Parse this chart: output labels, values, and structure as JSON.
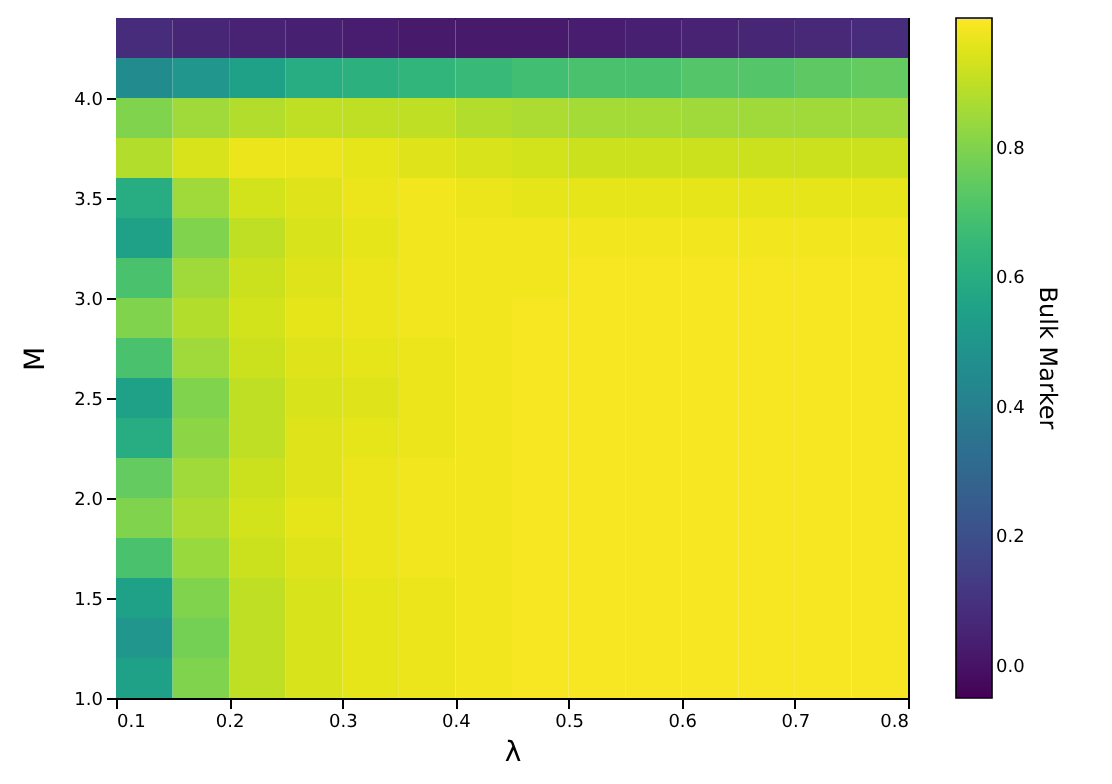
{
  "chart_data": {
    "type": "heatmap",
    "xlabel": "λ",
    "ylabel": "M",
    "clabel": "Bulk Marker",
    "x": [
      0.125,
      0.175,
      0.225,
      0.275,
      0.325,
      0.375,
      0.425,
      0.475,
      0.525,
      0.575,
      0.625,
      0.675,
      0.725,
      0.775
    ],
    "y": [
      4.3,
      4.1,
      3.9,
      3.7,
      3.5,
      3.3,
      3.1,
      2.9,
      2.7,
      2.5,
      2.3,
      2.1,
      1.9,
      1.7,
      1.5,
      1.3,
      1.1
    ],
    "cells": [
      [
        0.08,
        0.06,
        0.05,
        0.04,
        0.03,
        0.02,
        0.02,
        0.02,
        0.03,
        0.04,
        0.05,
        0.06,
        0.07,
        0.08
      ],
      [
        0.45,
        0.5,
        0.55,
        0.6,
        0.62,
        0.64,
        0.66,
        0.68,
        0.7,
        0.7,
        0.72,
        0.72,
        0.74,
        0.75
      ],
      [
        0.8,
        0.85,
        0.88,
        0.9,
        0.9,
        0.9,
        0.88,
        0.87,
        0.86,
        0.86,
        0.85,
        0.85,
        0.85,
        0.85
      ],
      [
        0.88,
        0.94,
        0.97,
        0.97,
        0.96,
        0.95,
        0.94,
        0.93,
        0.92,
        0.92,
        0.92,
        0.92,
        0.92,
        0.92
      ],
      [
        0.6,
        0.85,
        0.93,
        0.95,
        0.97,
        0.98,
        0.97,
        0.96,
        0.96,
        0.96,
        0.96,
        0.96,
        0.96,
        0.96
      ],
      [
        0.55,
        0.8,
        0.9,
        0.94,
        0.96,
        0.98,
        0.98,
        0.98,
        0.98,
        0.98,
        0.98,
        0.98,
        0.98,
        0.98
      ],
      [
        0.7,
        0.85,
        0.92,
        0.95,
        0.97,
        0.98,
        0.98,
        0.98,
        0.99,
        0.99,
        0.99,
        0.99,
        0.99,
        0.99
      ],
      [
        0.8,
        0.88,
        0.93,
        0.96,
        0.97,
        0.98,
        0.98,
        0.99,
        0.99,
        0.99,
        0.99,
        0.99,
        0.99,
        0.99
      ],
      [
        0.7,
        0.85,
        0.92,
        0.95,
        0.96,
        0.97,
        0.98,
        0.99,
        0.99,
        0.99,
        0.99,
        0.99,
        0.99,
        0.99
      ],
      [
        0.55,
        0.8,
        0.9,
        0.94,
        0.95,
        0.97,
        0.98,
        0.99,
        0.99,
        0.99,
        0.99,
        0.99,
        0.99,
        0.99
      ],
      [
        0.6,
        0.82,
        0.9,
        0.95,
        0.96,
        0.97,
        0.98,
        0.99,
        0.99,
        0.99,
        0.99,
        0.99,
        0.99,
        0.99
      ],
      [
        0.75,
        0.85,
        0.92,
        0.95,
        0.97,
        0.98,
        0.98,
        0.99,
        0.99,
        0.99,
        0.99,
        0.99,
        0.99,
        0.99
      ],
      [
        0.8,
        0.87,
        0.93,
        0.96,
        0.97,
        0.98,
        0.98,
        0.99,
        0.99,
        0.99,
        0.99,
        0.99,
        0.99,
        0.99
      ],
      [
        0.7,
        0.84,
        0.92,
        0.95,
        0.97,
        0.98,
        0.98,
        0.99,
        0.99,
        0.99,
        0.99,
        0.99,
        0.99,
        0.99
      ],
      [
        0.55,
        0.8,
        0.9,
        0.94,
        0.96,
        0.97,
        0.98,
        0.99,
        0.99,
        0.99,
        0.99,
        0.99,
        0.99,
        0.99
      ],
      [
        0.5,
        0.78,
        0.9,
        0.94,
        0.96,
        0.97,
        0.98,
        0.99,
        0.99,
        0.99,
        0.99,
        0.99,
        0.99,
        0.99
      ],
      [
        0.55,
        0.8,
        0.9,
        0.94,
        0.96,
        0.97,
        0.98,
        0.99,
        0.99,
        0.99,
        0.99,
        0.99,
        0.99,
        0.99
      ]
    ],
    "xlim": [
      0.1,
      0.8
    ],
    "xticks": [
      0.1,
      0.2,
      0.3,
      0.4,
      0.5,
      0.6,
      0.7,
      0.8
    ],
    "ylim": [
      1.0,
      4.4
    ],
    "yticks": [
      {
        "value": 1,
        "label": "1.0"
      },
      1.5,
      {
        "value": 2,
        "label": "2.0"
      },
      2.5,
      {
        "value": 3,
        "label": "3.0"
      },
      3.5,
      {
        "value": 4,
        "label": "4.0"
      }
    ],
    "clim": [
      -0.05,
      1.0
    ],
    "cticks": [
      {
        "value": 0,
        "label": "0.0"
      },
      0.2,
      0.4,
      0.6,
      0.8
    ]
  }
}
